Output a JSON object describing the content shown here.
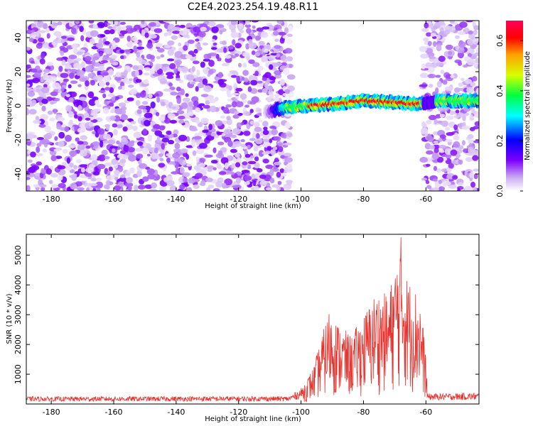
{
  "title": "C2E4.2023.254.19.48.R11",
  "chart_data": [
    {
      "type": "heatmap",
      "name": "spectrogram",
      "xlabel": "Height of straight line (km)",
      "ylabel": "Frequency (Hz)",
      "xlim": [
        -188,
        -43
      ],
      "ylim": [
        -50,
        50
      ],
      "xticks": [
        -180,
        -160,
        -140,
        -120,
        -100,
        -80,
        -60
      ],
      "yticks": [
        -40,
        -20,
        0,
        20,
        40
      ],
      "colorbar": {
        "label": "Normalized spectral amplitude",
        "range": [
          0.0,
          0.68
        ],
        "ticks": [
          0.0,
          0.2,
          0.4,
          0.6
        ],
        "tick_labels": [
          "0.0",
          "0.2",
          "0.4",
          "0.6"
        ]
      },
      "regions": [
        {
          "desc": "noise",
          "x": [
            -188,
            -105
          ],
          "y": [
            -50,
            50
          ],
          "level": [
            0.02,
            0.14
          ]
        },
        {
          "desc": "gap",
          "x": [
            -105,
            -103
          ],
          "y": [
            -50,
            50
          ],
          "level": [
            0.01,
            0.08
          ]
        },
        {
          "desc": "empty",
          "x": [
            -103,
            -61
          ],
          "y": [
            -50,
            50
          ],
          "level": [
            0,
            0
          ]
        },
        {
          "desc": "noise",
          "x": [
            -61,
            -43
          ],
          "y": [
            -50,
            50
          ],
          "level": [
            0.02,
            0.12
          ]
        }
      ],
      "signal_band": {
        "x_start": -112,
        "x_end": -43,
        "freq_center": [
          [
            -112,
            -4
          ],
          [
            -105,
            -1
          ],
          [
            -90,
            1
          ],
          [
            -80,
            3
          ],
          [
            -70,
            2
          ],
          [
            -62,
            1
          ],
          [
            -55,
            3
          ],
          [
            -43,
            3
          ]
        ],
        "half_width_hz": 4,
        "peak_amplitude": 0.65,
        "peak_near": [
          -92,
          -70
        ]
      }
    },
    {
      "type": "line",
      "name": "snr",
      "xlabel": "Height of straight line (km)",
      "ylabel": "SNR (10 * v/v)",
      "xlim": [
        -188,
        -43
      ],
      "ylim": [
        0,
        5700
      ],
      "xticks": [
        -180,
        -160,
        -140,
        -120,
        -100,
        -80,
        -60
      ],
      "yticks": [
        1000,
        2000,
        3000,
        4000,
        5000
      ],
      "color": "#e8322d",
      "envelope": [
        {
          "x": -188,
          "y": 250
        },
        {
          "x": -104,
          "y": 260
        },
        {
          "x": -100,
          "y": 520
        },
        {
          "x": -96,
          "y": 1250
        },
        {
          "x": -91,
          "y": 3200
        },
        {
          "x": -88,
          "y": 2700
        },
        {
          "x": -84,
          "y": 2300
        },
        {
          "x": -80,
          "y": 3000
        },
        {
          "x": -76,
          "y": 3800
        },
        {
          "x": -72,
          "y": 3700
        },
        {
          "x": -68,
          "y": 5600
        },
        {
          "x": -66,
          "y": 4300
        },
        {
          "x": -62,
          "y": 3700
        },
        {
          "x": -60,
          "y": 1700
        },
        {
          "x": -59.5,
          "y": 350
        },
        {
          "x": -43,
          "y": 380
        }
      ],
      "peak": {
        "x": -68,
        "y": 5600
      }
    }
  ]
}
